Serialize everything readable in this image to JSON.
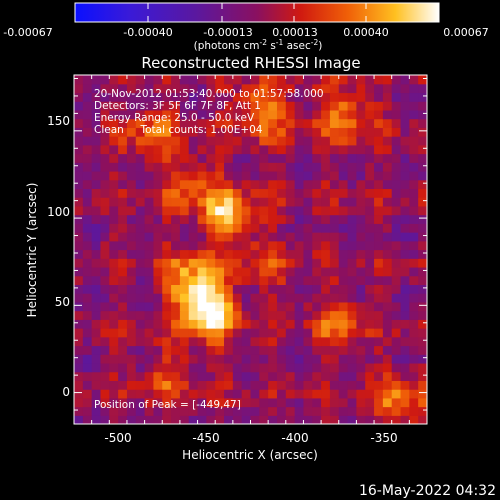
{
  "colorbar": {
    "ticks": [
      "-0.00067",
      "-0.00040",
      "-0.00013",
      "0.00013",
      "0.00040",
      "0.00067"
    ],
    "unit_parts": [
      "(photons cm",
      "-2",
      " s",
      "-1",
      " asec",
      "-2",
      ")"
    ]
  },
  "chart_data": {
    "type": "heatmap",
    "title": "Reconstructed RHESSI Image",
    "xlabel": "Heliocentric X (arcsec)",
    "ylabel": "Heliocentric Y (arcsec)",
    "xlim": [
      -525,
      -325
    ],
    "ylim": [
      -18,
      182
    ],
    "xticks": [
      "-500",
      "-450",
      "-400",
      "-350"
    ],
    "yticks": [
      "0",
      "50",
      "100",
      "150"
    ],
    "xtick_values": [
      -500,
      -450,
      -400,
      -350
    ],
    "ytick_values": [
      0,
      50,
      100,
      150
    ],
    "zlim": [
      -0.00067,
      0.00067
    ],
    "colormap": "rhessi-blue-purple-red-yellow-white",
    "annotations": [
      "20-Nov-2012 01:53:40.000 to 01:57:58.000",
      "Detectors: 3F 5F 6F 7F 8F, Att 1",
      "Energy Range: 25.0 - 50.0 keV",
      "Clean     Total counts: 1.00E+04"
    ],
    "peak_label": "Position of Peak = [-449,47]",
    "peak_position": [
      -449,
      47
    ],
    "sources": [
      {
        "x": -449,
        "y": 47,
        "peak": 0.00067
      },
      {
        "x": -458,
        "y": 65,
        "peak": 0.00045
      },
      {
        "x": -438,
        "y": 102,
        "peak": 0.00052
      },
      {
        "x": -418,
        "y": 162,
        "peak": 0.00045
      },
      {
        "x": -372,
        "y": 160,
        "peak": 0.0004
      },
      {
        "x": -480,
        "y": 150,
        "peak": 0.00032
      },
      {
        "x": -460,
        "y": 120,
        "peak": 0.0003
      },
      {
        "x": -375,
        "y": 40,
        "peak": 0.0003
      },
      {
        "x": -340,
        "y": -5,
        "peak": 0.00035
      },
      {
        "x": -470,
        "y": 10,
        "peak": 0.00025
      },
      {
        "x": -415,
        "y": 75,
        "peak": 0.0002
      }
    ]
  },
  "timestamp": "16-May-2022 04:32"
}
